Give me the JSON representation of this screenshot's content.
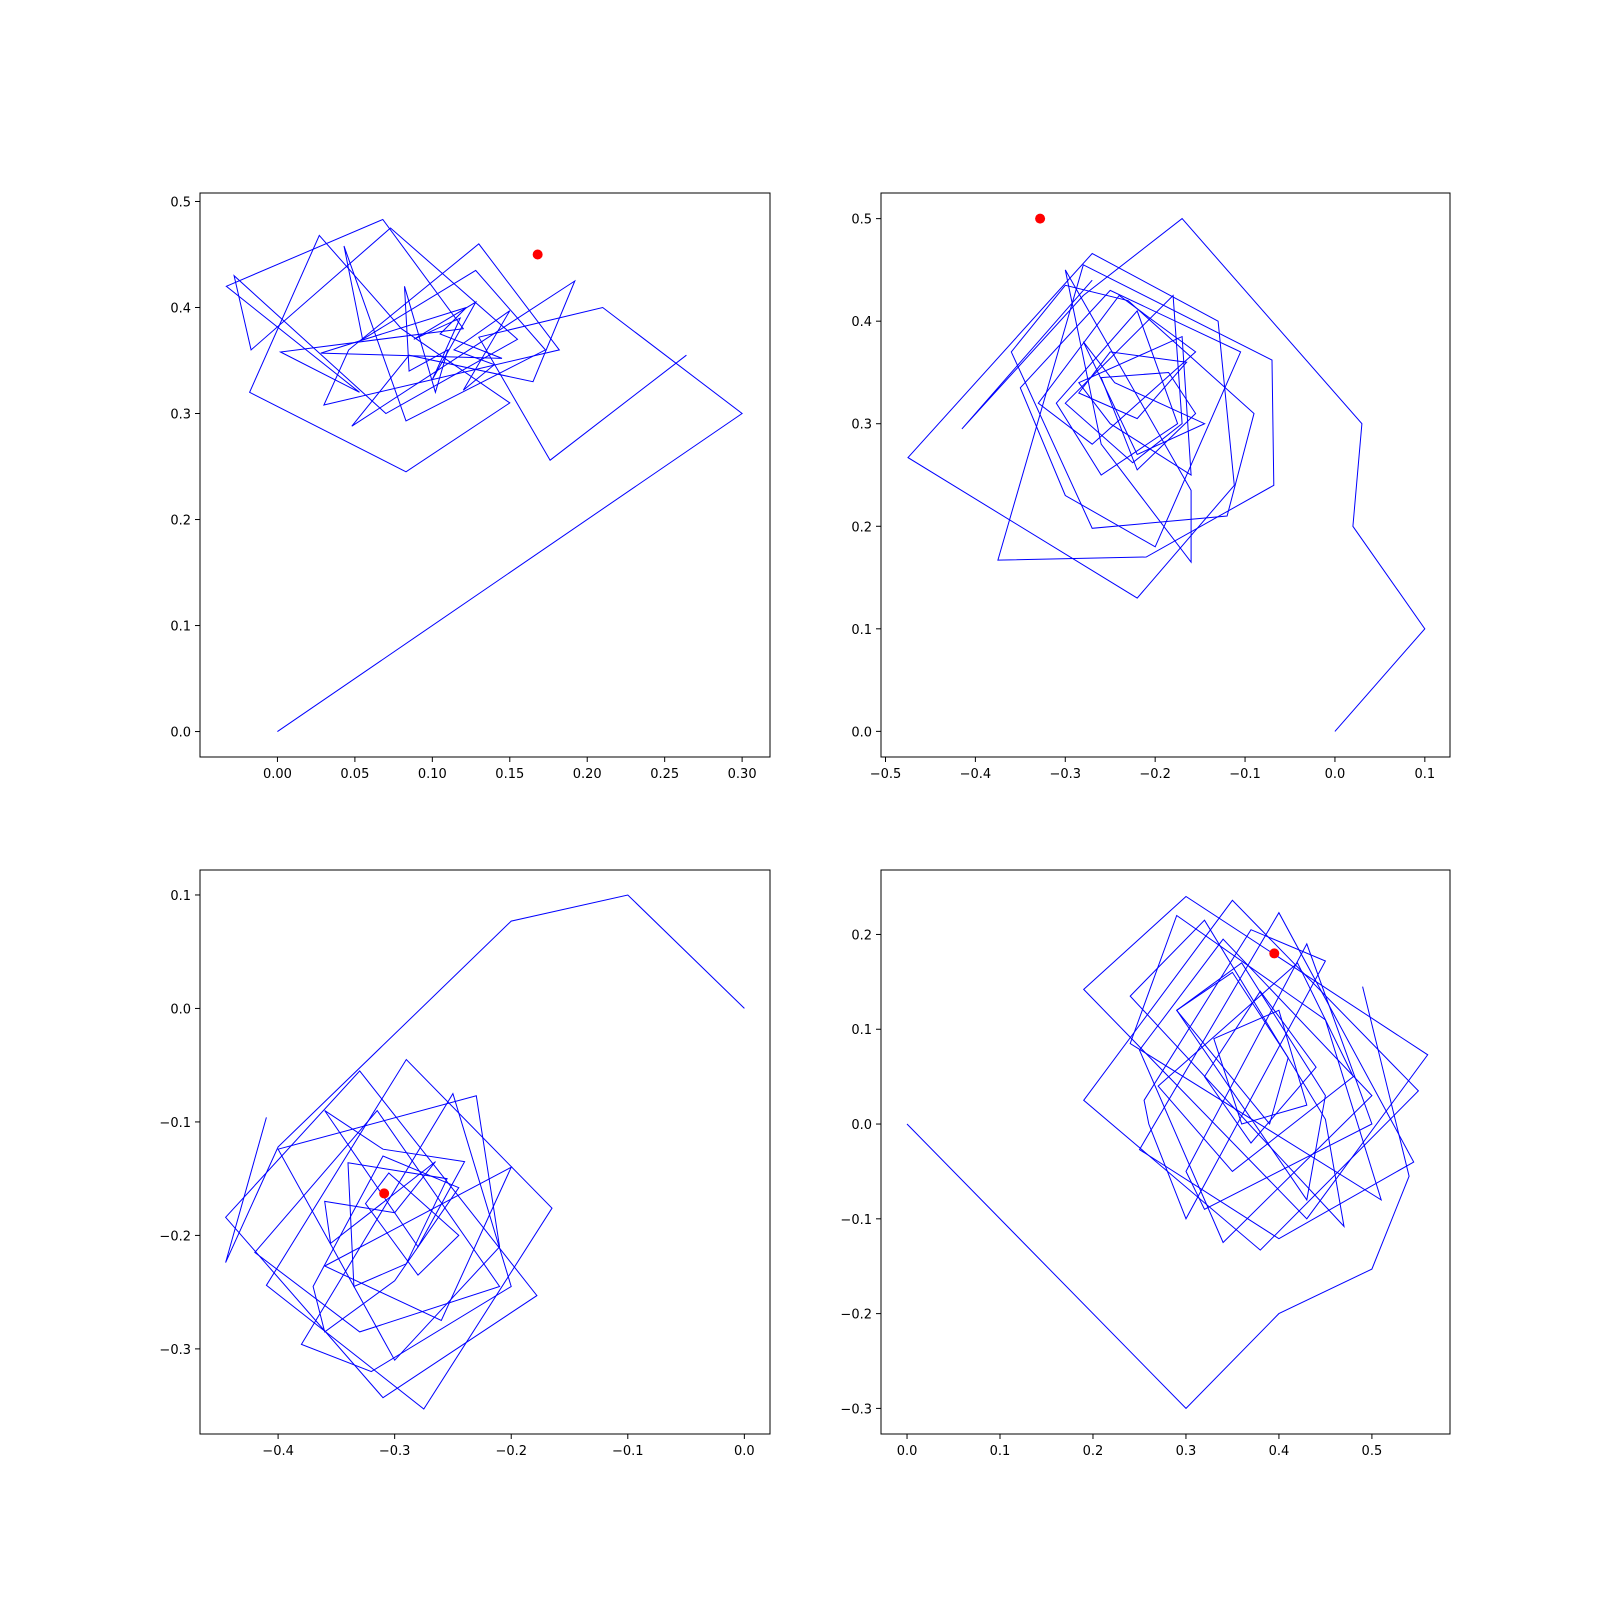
{
  "chart_data": [
    {
      "type": "line",
      "panel": "top-left",
      "xlim": [
        -0.05,
        0.318
      ],
      "ylim": [
        -0.024,
        0.508
      ],
      "xticks": [
        0.0,
        0.05,
        0.1,
        0.15,
        0.2,
        0.25,
        0.3
      ],
      "xtick_labels": [
        "0.00",
        "0.05",
        "0.10",
        "0.15",
        "0.20",
        "0.25",
        "0.30"
      ],
      "yticks": [
        0.0,
        0.1,
        0.2,
        0.3,
        0.4,
        0.5
      ],
      "ytick_labels": [
        "0.0",
        "0.1",
        "0.2",
        "0.3",
        "0.4",
        "0.5"
      ],
      "series": [
        {
          "color": "#0000ff",
          "x": [
            0.0,
            0.3,
            0.21,
            0.13,
            0.176,
            0.264
          ],
          "y": [
            0.0,
            0.3,
            0.4,
            0.372,
            0.256,
            0.355
          ]
        },
        {
          "color": "#0000ff",
          "closed_loops": true,
          "loops": [
            {
              "x": [
                -0.033,
                0.068,
                0.12,
                0.002,
                0.053
              ],
              "y": [
                0.42,
                0.483,
                0.38,
                0.358,
                0.32
              ]
            },
            {
              "x": [
                0.027,
                0.08,
                0.15,
                0.083,
                -0.018
              ],
              "y": [
                0.468,
                0.38,
                0.31,
                0.245,
                0.32
              ]
            },
            {
              "x": [
                -0.017,
                0.073,
                0.155,
                0.07,
                -0.028
              ],
              "y": [
                0.36,
                0.475,
                0.37,
                0.3,
                0.43
              ]
            },
            {
              "x": [
                0.043,
                0.083,
                0.173,
                0.128,
                0.055
              ],
              "y": [
                0.458,
                0.293,
                0.36,
                0.435,
                0.37
              ]
            },
            {
              "x": [
                0.03,
                0.182,
                0.13,
                0.046
              ],
              "y": [
                0.308,
                0.36,
                0.46,
                0.36
              ]
            },
            {
              "x": [
                0.048,
                0.192,
                0.165,
                0.085
              ],
              "y": [
                0.288,
                0.425,
                0.33,
                0.355
              ]
            },
            {
              "x": [
                0.028,
                0.145,
                0.105,
                0.122
              ],
              "y": [
                0.357,
                0.352,
                0.375,
                0.4
              ]
            },
            {
              "x": [
                0.082,
                0.102,
                0.11,
                0.085
              ],
              "y": [
                0.42,
                0.32,
                0.36,
                0.34
              ]
            },
            {
              "x": [
                0.128,
                0.1,
                0.118,
                0.088
              ],
              "y": [
                0.405,
                0.332,
                0.39,
                0.37
              ]
            },
            {
              "x": [
                0.114,
                0.15,
                0.12,
                0.14
              ],
              "y": [
                0.36,
                0.397,
                0.322,
                0.346
              ]
            }
          ]
        },
        {
          "color": "#ff0000",
          "marker": "o",
          "x": [
            0.168
          ],
          "y": [
            0.45
          ]
        }
      ]
    },
    {
      "type": "line",
      "panel": "top-right",
      "xlim": [
        -0.505,
        0.128
      ],
      "ylim": [
        -0.025,
        0.525
      ],
      "xticks": [
        -0.5,
        -0.4,
        -0.3,
        -0.2,
        -0.1,
        0.0,
        0.1
      ],
      "xtick_labels": [
        "−0.5",
        "−0.4",
        "−0.3",
        "−0.2",
        "−0.1",
        "0.0",
        "0.1"
      ],
      "yticks": [
        0.0,
        0.1,
        0.2,
        0.3,
        0.4,
        0.5
      ],
      "ytick_labels": [
        "0.0",
        "0.1",
        "0.2",
        "0.3",
        "0.4",
        "0.5"
      ],
      "series": [
        {
          "color": "#0000ff",
          "x": [
            0.0,
            0.1,
            0.02,
            0.03,
            -0.17,
            -0.28,
            -0.415,
            -0.33,
            -0.27
          ],
          "y": [
            0.0,
            0.1,
            0.2,
            0.3,
            0.5,
            0.425,
            0.295,
            0.38,
            0.44
          ]
        },
        {
          "color": "#0000ff",
          "closed_loops": true,
          "loops": [
            {
              "x": [
                -0.475,
                -0.27,
                -0.13,
                -0.112,
                -0.22
              ],
              "y": [
                0.267,
                0.466,
                0.4,
                0.24,
                0.13
              ]
            },
            {
              "x": [
                -0.375,
                -0.28,
                -0.07,
                -0.068,
                -0.21
              ],
              "y": [
                0.167,
                0.455,
                0.362,
                0.24,
                0.17
              ]
            },
            {
              "x": [
                -0.36,
                -0.3,
                -0.23,
                -0.09,
                -0.12,
                -0.27
              ],
              "y": [
                0.37,
                0.435,
                0.42,
                0.31,
                0.21,
                0.198
              ]
            },
            {
              "x": [
                -0.35,
                -0.25,
                -0.105,
                -0.2,
                -0.3
              ],
              "y": [
                0.335,
                0.43,
                0.37,
                0.18,
                0.23
              ]
            },
            {
              "x": [
                -0.33,
                -0.24,
                -0.155,
                -0.27
              ],
              "y": [
                0.32,
                0.425,
                0.37,
                0.28
              ]
            },
            {
              "x": [
                -0.31,
                -0.22,
                -0.175,
                -0.26
              ],
              "y": [
                0.32,
                0.41,
                0.3,
                0.25
              ]
            },
            {
              "x": [
                -0.3,
                -0.18,
                -0.17,
                -0.225
              ],
              "y": [
                0.32,
                0.425,
                0.3,
                0.262
              ]
            },
            {
              "x": [
                -0.285,
                -0.17,
                -0.16,
                -0.25
              ],
              "y": [
                0.34,
                0.385,
                0.25,
                0.3
              ]
            },
            {
              "x": [
                -0.28,
                -0.245,
                -0.145,
                -0.22
              ],
              "y": [
                0.38,
                0.34,
                0.3,
                0.27
              ]
            },
            {
              "x": [
                -0.26,
                -0.185,
                -0.155,
                -0.22
              ],
              "y": [
                0.345,
                0.35,
                0.31,
                0.255
              ]
            },
            {
              "x": [
                -0.285,
                -0.22,
                -0.165,
                -0.25
              ],
              "y": [
                0.33,
                0.305,
                0.36,
                0.37
              ]
            },
            {
              "x": [
                -0.3,
                -0.16,
                -0.16,
                -0.26
              ],
              "y": [
                0.45,
                0.235,
                0.165,
                0.28
              ]
            }
          ]
        },
        {
          "color": "#ff0000",
          "marker": "o",
          "x": [
            -0.328
          ],
          "y": [
            0.5
          ]
        }
      ]
    },
    {
      "type": "line",
      "panel": "bottom-left",
      "xlim": [
        -0.467,
        0.022
      ],
      "ylim": [
        -0.375,
        0.122
      ],
      "xticks": [
        -0.4,
        -0.3,
        -0.2,
        -0.1,
        0.0
      ],
      "xtick_labels": [
        "−0.4",
        "−0.3",
        "−0.2",
        "−0.1",
        "0.0"
      ],
      "yticks": [
        -0.3,
        -0.2,
        -0.1,
        0.0,
        0.1
      ],
      "ytick_labels": [
        "−0.3",
        "−0.2",
        "−0.1",
        "0.0",
        "0.1"
      ],
      "series": [
        {
          "color": "#0000ff",
          "x": [
            0.0,
            -0.1,
            -0.2,
            -0.4,
            -0.445,
            -0.41
          ],
          "y": [
            0.0,
            0.1,
            0.077,
            -0.122,
            -0.224,
            -0.096
          ]
        },
        {
          "color": "#0000ff",
          "closed_loops": true,
          "loops": [
            {
              "x": [
                -0.445,
                -0.33,
                -0.178,
                -0.31
              ],
              "y": [
                -0.184,
                -0.055,
                -0.253,
                -0.343
              ]
            },
            {
              "x": [
                -0.41,
                -0.29,
                -0.165,
                -0.275
              ],
              "y": [
                -0.244,
                -0.045,
                -0.176,
                -0.353
              ]
            },
            {
              "x": [
                -0.4,
                -0.23,
                -0.21,
                -0.3
              ],
              "y": [
                -0.124,
                -0.077,
                -0.21,
                -0.31
              ]
            },
            {
              "x": [
                -0.38,
                -0.25,
                -0.2,
                -0.32
              ],
              "y": [
                -0.296,
                -0.075,
                -0.245,
                -0.32
              ]
            },
            {
              "x": [
                -0.42,
                -0.315,
                -0.21,
                -0.33
              ],
              "y": [
                -0.215,
                -0.09,
                -0.245,
                -0.285
              ]
            },
            {
              "x": [
                -0.36,
                -0.28,
                -0.24,
                -0.31
              ],
              "y": [
                -0.09,
                -0.21,
                -0.135,
                -0.124
              ]
            },
            {
              "x": [
                -0.37,
                -0.31,
                -0.245,
                -0.3,
                -0.36
              ],
              "y": [
                -0.245,
                -0.13,
                -0.158,
                -0.24,
                -0.285
              ]
            },
            {
              "x": [
                -0.34,
                -0.255,
                -0.29,
                -0.335
              ],
              "y": [
                -0.136,
                -0.15,
                -0.225,
                -0.245
              ]
            },
            {
              "x": [
                -0.355,
                -0.265,
                -0.3,
                -0.36
              ],
              "y": [
                -0.207,
                -0.135,
                -0.18,
                -0.17
              ]
            },
            {
              "x": [
                -0.36,
                -0.2,
                -0.26
              ],
              "y": [
                -0.227,
                -0.14,
                -0.275
              ]
            },
            {
              "x": [
                -0.305,
                -0.245,
                -0.28,
                -0.325
              ],
              "y": [
                -0.145,
                -0.2,
                -0.235,
                -0.172
              ]
            }
          ]
        },
        {
          "color": "#ff0000",
          "marker": "o",
          "x": [
            -0.309
          ],
          "y": [
            -0.163
          ]
        }
      ]
    },
    {
      "type": "line",
      "panel": "bottom-right",
      "xlim": [
        -0.028,
        0.584
      ],
      "ylim": [
        -0.327,
        0.268
      ],
      "xticks": [
        0.0,
        0.1,
        0.2,
        0.3,
        0.4,
        0.5
      ],
      "xtick_labels": [
        "0.0",
        "0.1",
        "0.2",
        "0.3",
        "0.4",
        "0.5"
      ],
      "yticks": [
        -0.3,
        -0.2,
        -0.1,
        0.0,
        0.1,
        0.2
      ],
      "ytick_labels": [
        "−0.3",
        "−0.2",
        "−0.1",
        "0.0",
        "0.1",
        "0.2"
      ],
      "series": [
        {
          "color": "#0000ff",
          "x": [
            0.0,
            0.3,
            0.4,
            0.5,
            0.54,
            0.49
          ],
          "y": [
            0.0,
            -0.3,
            -0.2,
            -0.153,
            -0.055,
            0.145
          ]
        },
        {
          "color": "#0000ff",
          "closed_loops": true,
          "loops": [
            {
              "x": [
                0.19,
                0.3,
                0.56,
                0.43
              ],
              "y": [
                0.142,
                0.24,
                0.073,
                -0.1
              ]
            },
            {
              "x": [
                0.19,
                0.35,
                0.55,
                0.38
              ],
              "y": [
                0.025,
                0.236,
                0.035,
                -0.133
              ]
            },
            {
              "x": [
                0.25,
                0.4,
                0.545,
                0.4
              ],
              "y": [
                -0.027,
                0.223,
                -0.04,
                -0.121
              ]
            },
            {
              "x": [
                0.25,
                0.34,
                0.5,
                0.34
              ],
              "y": [
                0.078,
                0.195,
                0.03,
                -0.125
              ]
            },
            {
              "x": [
                0.24,
                0.32,
                0.45,
                0.47
              ],
              "y": [
                0.135,
                0.215,
                0.005,
                -0.108
              ]
            },
            {
              "x": [
                0.255,
                0.37,
                0.45,
                0.3,
                0.26
              ],
              "y": [
                0.025,
                0.205,
                0.172,
                -0.1,
                -0.0
              ]
            },
            {
              "x": [
                0.24,
                0.29,
                0.45,
                0.51
              ],
              "y": [
                0.085,
                0.22,
                0.11,
                -0.08
              ]
            },
            {
              "x": [
                0.3,
                0.43,
                0.5,
                0.32
              ],
              "y": [
                -0.05,
                0.19,
                0.0,
                -0.09
              ]
            },
            {
              "x": [
                0.27,
                0.42,
                0.48,
                0.35
              ],
              "y": [
                0.04,
                0.17,
                0.05,
                -0.05
              ]
            },
            {
              "x": [
                0.29,
                0.36,
                0.45,
                0.43
              ],
              "y": [
                0.12,
                0.17,
                0.03,
                -0.08
              ]
            },
            {
              "x": [
                0.32,
                0.38,
                0.44,
                0.37
              ],
              "y": [
                0.05,
                0.14,
                0.06,
                -0.02
              ]
            },
            {
              "x": [
                0.29,
                0.35,
                0.41,
                0.39
              ],
              "y": [
                0.12,
                0.16,
                0.07,
                0.0
              ]
            },
            {
              "x": [
                0.33,
                0.4,
                0.43,
                0.36
              ],
              "y": [
                0.09,
                0.12,
                0.02,
                0.0
              ]
            }
          ]
        },
        {
          "color": "#ff0000",
          "marker": "o",
          "x": [
            0.395
          ],
          "y": [
            0.18
          ]
        }
      ]
    }
  ]
}
